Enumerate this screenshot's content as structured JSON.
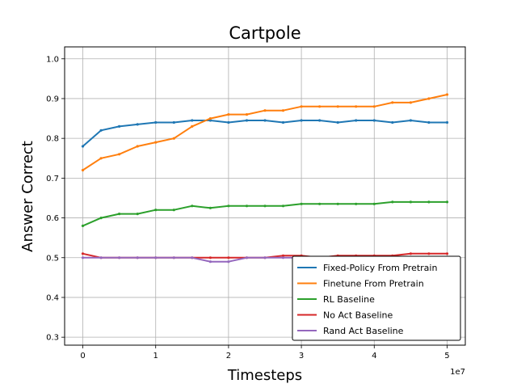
{
  "chart_data": {
    "type": "line",
    "title": "Cartpole",
    "xlabel": "Timesteps",
    "ylabel": "Answer Correct",
    "x_offset_label": "1e7",
    "xlim": [
      -0.25,
      5.25
    ],
    "ylim": [
      0.28,
      1.03
    ],
    "x_ticks": [
      0,
      1,
      2,
      3,
      4,
      5
    ],
    "x_tick_labels": [
      "0",
      "1",
      "2",
      "3",
      "4",
      "5"
    ],
    "y_ticks": [
      0.3,
      0.4,
      0.5,
      0.6,
      0.7,
      0.8,
      0.9,
      1.0
    ],
    "y_tick_labels": [
      "0.3",
      "0.4",
      "0.5",
      "0.6",
      "0.7",
      "0.8",
      "0.9",
      "1.0"
    ],
    "grid": true,
    "legend_position": "lower-right",
    "x": [
      0,
      0.25,
      0.5,
      0.75,
      1.0,
      1.25,
      1.5,
      1.75,
      2.0,
      2.25,
      2.5,
      2.75,
      3.0,
      3.25,
      3.5,
      3.75,
      4.0,
      4.25,
      4.5,
      4.75,
      5.0
    ],
    "series": [
      {
        "name": "Fixed-Policy From Pretrain",
        "color": "#1f77b4",
        "values": [
          0.78,
          0.82,
          0.83,
          0.835,
          0.84,
          0.84,
          0.845,
          0.845,
          0.84,
          0.845,
          0.845,
          0.84,
          0.845,
          0.845,
          0.84,
          0.845,
          0.845,
          0.84,
          0.845,
          0.84,
          0.84
        ]
      },
      {
        "name": "Finetune From Pretrain",
        "color": "#ff7f0e",
        "values": [
          0.72,
          0.75,
          0.76,
          0.78,
          0.79,
          0.8,
          0.83,
          0.85,
          0.86,
          0.86,
          0.87,
          0.87,
          0.88,
          0.88,
          0.88,
          0.88,
          0.88,
          0.89,
          0.89,
          0.9,
          0.91
        ]
      },
      {
        "name": "RL Baseline",
        "color": "#2ca02c",
        "values": [
          0.58,
          0.6,
          0.61,
          0.61,
          0.62,
          0.62,
          0.63,
          0.625,
          0.63,
          0.63,
          0.63,
          0.63,
          0.635,
          0.635,
          0.635,
          0.635,
          0.635,
          0.64,
          0.64,
          0.64,
          0.64
        ]
      },
      {
        "name": "No Act Baseline",
        "color": "#d62728",
        "values": [
          0.51,
          0.5,
          0.5,
          0.5,
          0.5,
          0.5,
          0.5,
          0.5,
          0.5,
          0.5,
          0.5,
          0.505,
          0.505,
          0.5,
          0.505,
          0.505,
          0.505,
          0.505,
          0.51,
          0.51,
          0.51
        ]
      },
      {
        "name": "Rand Act Baseline",
        "color": "#9467bd",
        "values": [
          0.5,
          0.5,
          0.5,
          0.5,
          0.5,
          0.5,
          0.5,
          0.49,
          0.49,
          0.5,
          0.5,
          0.5,
          0.5,
          0.5,
          0.5,
          0.5,
          0.5,
          0.5,
          0.5,
          0.5,
          0.5
        ]
      }
    ]
  }
}
